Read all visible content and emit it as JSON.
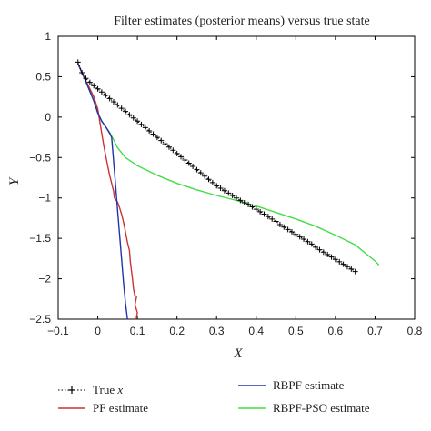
{
  "chart_data": {
    "type": "line",
    "title": "Filter estimates (posterior means) versus true state",
    "xlabel": "X",
    "ylabel": "Y",
    "xlim": [
      -0.1,
      0.8
    ],
    "ylim": [
      -2.5,
      1
    ],
    "xticks": [
      -0.1,
      0,
      0.1,
      0.2,
      0.3,
      0.4,
      0.5,
      0.6,
      0.7,
      0.8
    ],
    "yticks": [
      -2.5,
      -2,
      -1.5,
      -1,
      -0.5,
      0,
      0.5,
      1
    ],
    "grid": false,
    "legend_position": "bottom",
    "series": [
      {
        "name": "True x",
        "legend_italic_part": "x",
        "color": "#000000",
        "style": "dotted-plus",
        "points": [
          [
            -0.05,
            0.68
          ],
          [
            -0.04,
            0.55
          ],
          [
            -0.03,
            0.48
          ],
          [
            -0.02,
            0.43
          ],
          [
            -0.01,
            0.39
          ],
          [
            0.0,
            0.35
          ],
          [
            0.01,
            0.31
          ],
          [
            0.02,
            0.27
          ],
          [
            0.03,
            0.23
          ],
          [
            0.04,
            0.19
          ],
          [
            0.05,
            0.15
          ],
          [
            0.06,
            0.11
          ],
          [
            0.07,
            0.07
          ],
          [
            0.08,
            0.03
          ],
          [
            0.09,
            -0.01
          ],
          [
            0.1,
            -0.05
          ],
          [
            0.11,
            -0.09
          ],
          [
            0.12,
            -0.13
          ],
          [
            0.13,
            -0.17
          ],
          [
            0.14,
            -0.21
          ],
          [
            0.15,
            -0.25
          ],
          [
            0.16,
            -0.29
          ],
          [
            0.17,
            -0.33
          ],
          [
            0.18,
            -0.37
          ],
          [
            0.19,
            -0.41
          ],
          [
            0.2,
            -0.45
          ],
          [
            0.21,
            -0.49
          ],
          [
            0.22,
            -0.53
          ],
          [
            0.23,
            -0.57
          ],
          [
            0.24,
            -0.61
          ],
          [
            0.25,
            -0.65
          ],
          [
            0.26,
            -0.69
          ],
          [
            0.27,
            -0.73
          ],
          [
            0.28,
            -0.77
          ],
          [
            0.29,
            -0.81
          ],
          [
            0.3,
            -0.85
          ],
          [
            0.31,
            -0.88
          ],
          [
            0.32,
            -0.91
          ],
          [
            0.33,
            -0.94
          ],
          [
            0.34,
            -0.97
          ],
          [
            0.35,
            -1.0
          ],
          [
            0.36,
            -1.03
          ],
          [
            0.37,
            -1.06
          ],
          [
            0.38,
            -1.08
          ],
          [
            0.39,
            -1.11
          ],
          [
            0.4,
            -1.14
          ],
          [
            0.41,
            -1.17
          ],
          [
            0.42,
            -1.2
          ],
          [
            0.43,
            -1.23
          ],
          [
            0.44,
            -1.26
          ],
          [
            0.45,
            -1.29
          ],
          [
            0.46,
            -1.33
          ],
          [
            0.47,
            -1.36
          ],
          [
            0.48,
            -1.39
          ],
          [
            0.49,
            -1.42
          ],
          [
            0.5,
            -1.45
          ],
          [
            0.51,
            -1.48
          ],
          [
            0.52,
            -1.51
          ],
          [
            0.53,
            -1.54
          ],
          [
            0.54,
            -1.57
          ],
          [
            0.55,
            -1.61
          ],
          [
            0.56,
            -1.64
          ],
          [
            0.57,
            -1.67
          ],
          [
            0.58,
            -1.7
          ],
          [
            0.59,
            -1.73
          ],
          [
            0.6,
            -1.76
          ],
          [
            0.61,
            -1.79
          ],
          [
            0.62,
            -1.82
          ],
          [
            0.63,
            -1.85
          ],
          [
            0.64,
            -1.88
          ],
          [
            0.65,
            -1.91
          ]
        ]
      },
      {
        "name": "PF estimate",
        "color": "#cc3333",
        "style": "solid",
        "points": [
          [
            -0.05,
            0.66
          ],
          [
            -0.03,
            0.45
          ],
          [
            -0.01,
            0.25
          ],
          [
            0.0,
            0.1
          ],
          [
            0.005,
            -0.05
          ],
          [
            0.01,
            -0.2
          ],
          [
            0.015,
            -0.35
          ],
          [
            0.02,
            -0.48
          ],
          [
            0.025,
            -0.6
          ],
          [
            0.03,
            -0.72
          ],
          [
            0.035,
            -0.82
          ],
          [
            0.04,
            -0.92
          ],
          [
            0.042,
            -1.0
          ],
          [
            0.05,
            -1.05
          ],
          [
            0.055,
            -1.12
          ],
          [
            0.06,
            -1.2
          ],
          [
            0.065,
            -1.3
          ],
          [
            0.07,
            -1.42
          ],
          [
            0.075,
            -1.55
          ],
          [
            0.08,
            -1.65
          ],
          [
            0.082,
            -1.78
          ],
          [
            0.085,
            -1.9
          ],
          [
            0.088,
            -2.02
          ],
          [
            0.09,
            -2.12
          ],
          [
            0.093,
            -2.2
          ],
          [
            0.098,
            -2.22
          ],
          [
            0.094,
            -2.32
          ],
          [
            0.1,
            -2.42
          ],
          [
            0.097,
            -2.5
          ]
        ]
      },
      {
        "name": "RBPF estimate",
        "color": "#2233aa",
        "style": "solid",
        "points": [
          [
            -0.05,
            0.66
          ],
          [
            -0.04,
            0.55
          ],
          [
            -0.03,
            0.44
          ],
          [
            -0.02,
            0.32
          ],
          [
            -0.01,
            0.2
          ],
          [
            0.0,
            0.05
          ],
          [
            0.01,
            -0.05
          ],
          [
            0.02,
            -0.12
          ],
          [
            0.03,
            -0.2
          ],
          [
            0.035,
            -0.25
          ],
          [
            0.04,
            -0.55
          ],
          [
            0.045,
            -0.85
          ],
          [
            0.05,
            -1.15
          ],
          [
            0.055,
            -1.45
          ],
          [
            0.06,
            -1.75
          ],
          [
            0.065,
            -2.05
          ],
          [
            0.07,
            -2.3
          ],
          [
            0.075,
            -2.5
          ]
        ]
      },
      {
        "name": "RBPF-PSO estimate",
        "color": "#44dd44",
        "style": "solid",
        "points": [
          [
            -0.05,
            0.66
          ],
          [
            -0.04,
            0.55
          ],
          [
            -0.03,
            0.44
          ],
          [
            -0.02,
            0.32
          ],
          [
            -0.01,
            0.2
          ],
          [
            0.0,
            0.05
          ],
          [
            0.01,
            -0.05
          ],
          [
            0.02,
            -0.12
          ],
          [
            0.03,
            -0.19
          ],
          [
            0.04,
            -0.28
          ],
          [
            0.05,
            -0.38
          ],
          [
            0.07,
            -0.5
          ],
          [
            0.1,
            -0.6
          ],
          [
            0.15,
            -0.72
          ],
          [
            0.2,
            -0.82
          ],
          [
            0.25,
            -0.9
          ],
          [
            0.3,
            -0.97
          ],
          [
            0.35,
            -1.03
          ],
          [
            0.4,
            -1.1
          ],
          [
            0.45,
            -1.18
          ],
          [
            0.5,
            -1.26
          ],
          [
            0.55,
            -1.35
          ],
          [
            0.6,
            -1.46
          ],
          [
            0.65,
            -1.58
          ],
          [
            0.7,
            -1.78
          ],
          [
            0.71,
            -1.83
          ]
        ]
      }
    ]
  }
}
